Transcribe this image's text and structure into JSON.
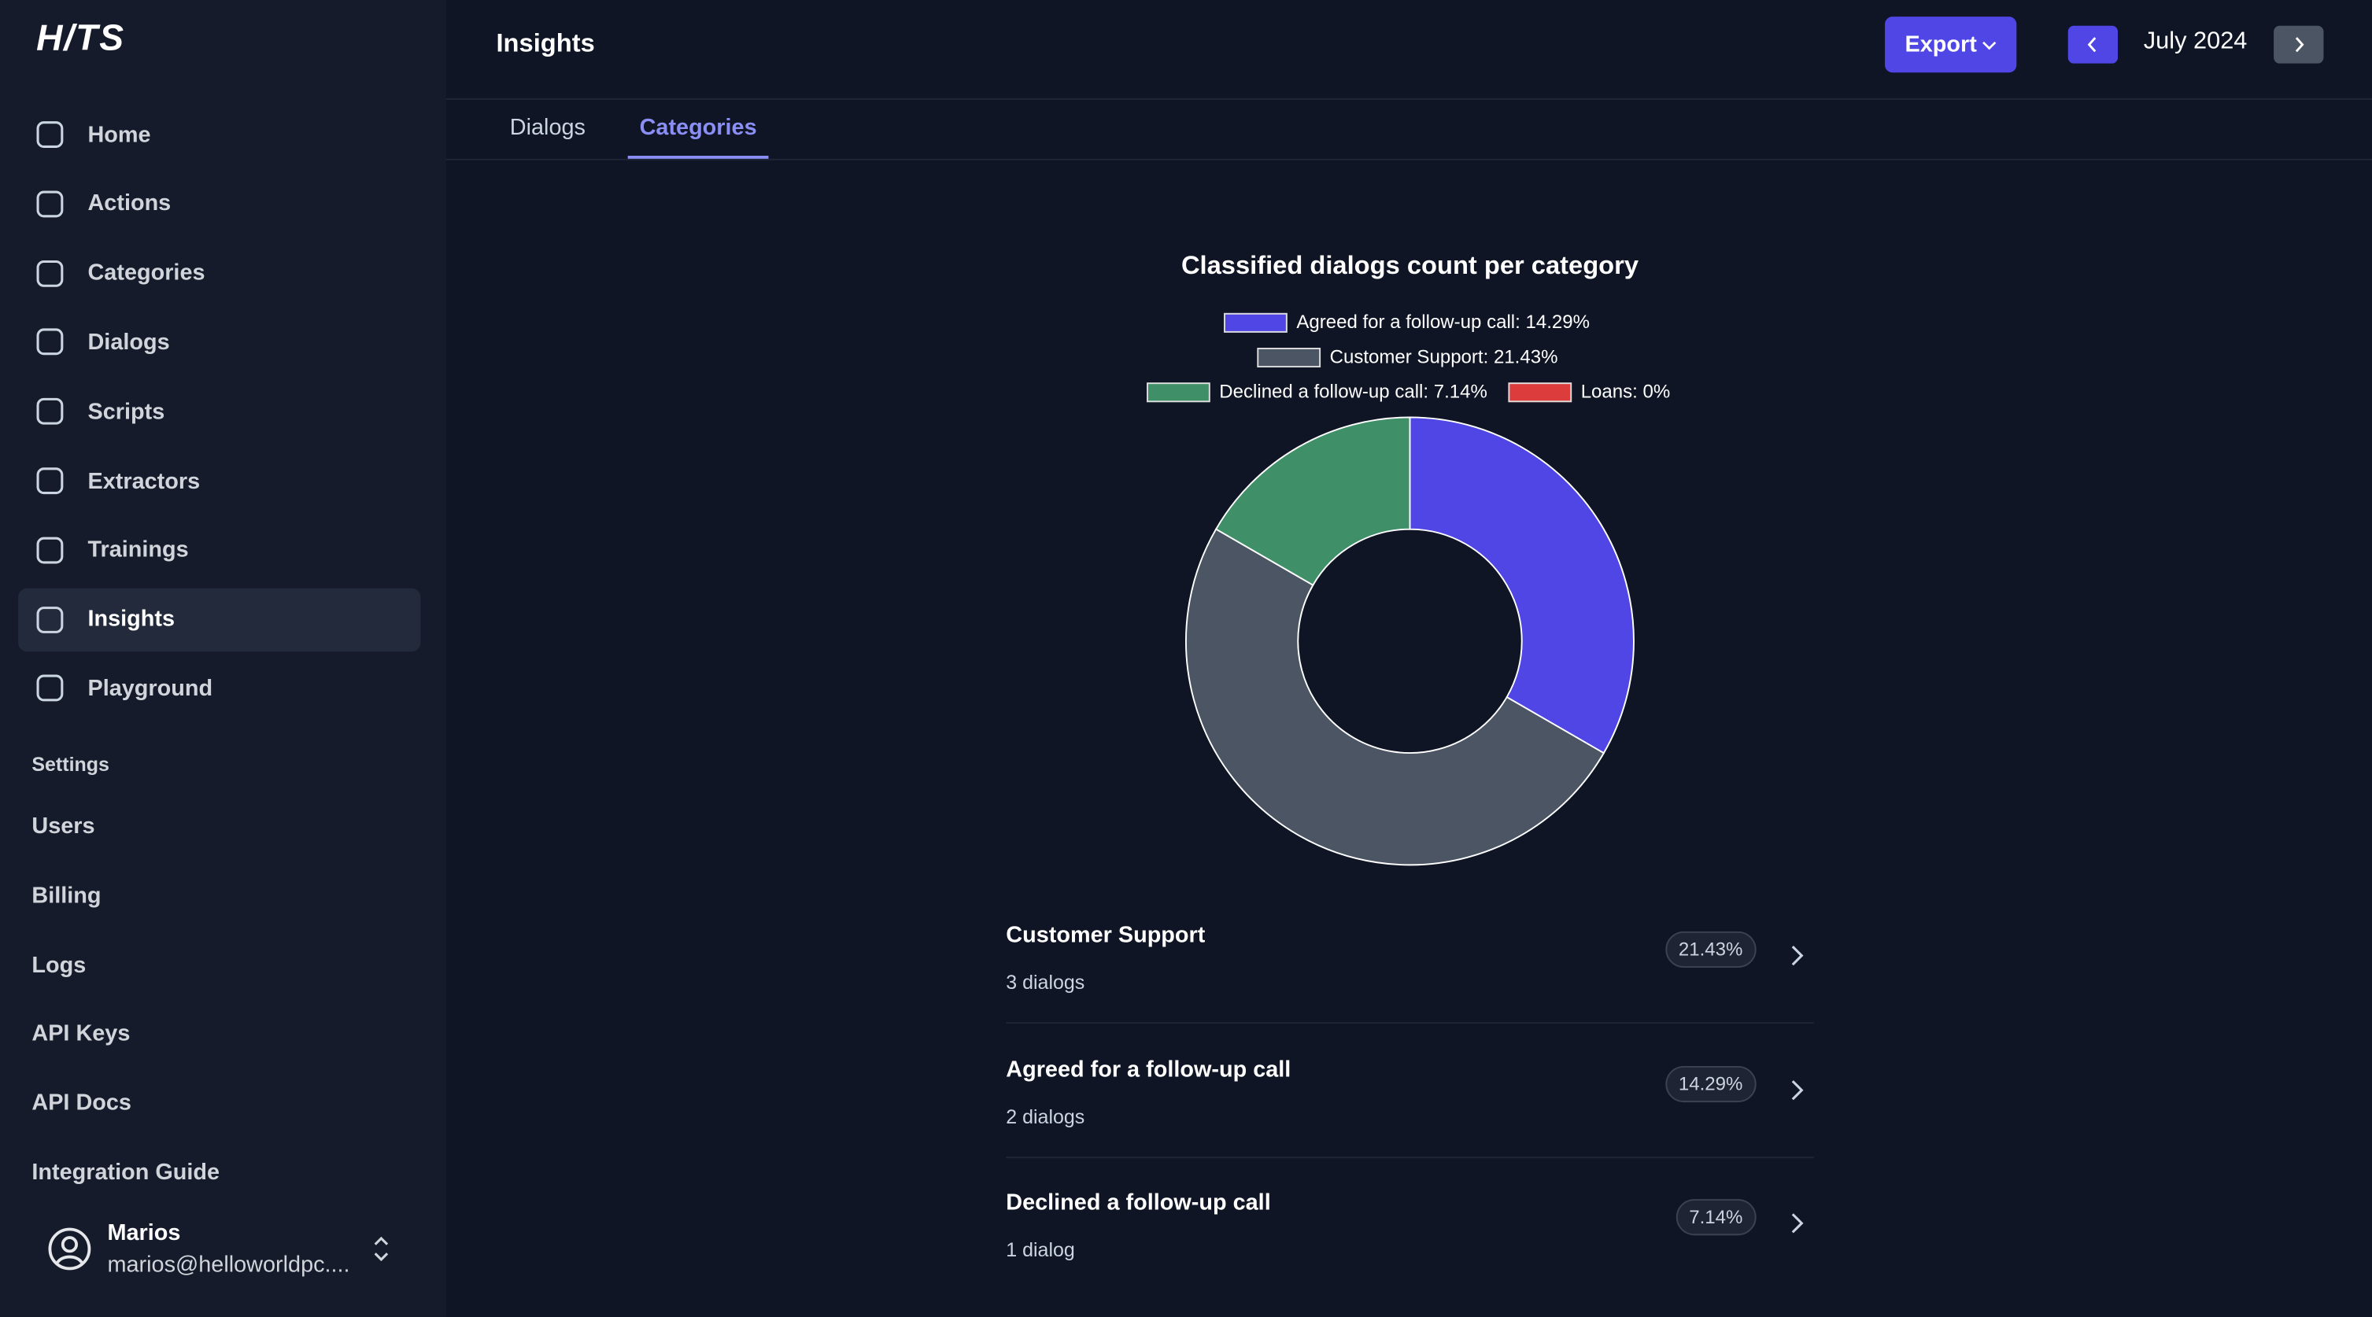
{
  "sidebar": {
    "logo": "H/TS",
    "nav": [
      "Home",
      "Actions",
      "Categories",
      "Dialogs",
      "Scripts",
      "Extractors",
      "Trainings",
      "Insights",
      "Playground"
    ],
    "settings_heading": "Settings",
    "settings": [
      "Users",
      "Billing",
      "Logs",
      "API Keys",
      "API Docs",
      "Integration Guide"
    ],
    "user": {
      "name": "Marios",
      "email": "marios@helloworldpc...."
    }
  },
  "header": {
    "title": "Insights",
    "export": "Export",
    "period": "July 2024"
  },
  "tabs": [
    "Dialogs",
    "Categories"
  ],
  "chart_data": {
    "type": "pie",
    "title": "Classified dialogs count per category",
    "labels": [
      "Agreed for a follow-up call: 14.29%",
      "Customer Support: 21.43%",
      "Declined a follow-up call: 7.14%",
      "Loans: 0%"
    ],
    "values": [
      14.29,
      21.43,
      7.14,
      0
    ],
    "colors": [
      "#4f46e5",
      "#4b5563",
      "#3f9068",
      "#dc3c3c"
    ]
  },
  "list": [
    {
      "title": "Customer Support",
      "count": "3 dialogs",
      "percent": "21.43%"
    },
    {
      "title": "Agreed for a follow-up call",
      "count": "2 dialogs",
      "percent": "14.29%"
    },
    {
      "title": "Declined a follow-up call",
      "count": "1 dialog",
      "percent": "7.14%"
    }
  ]
}
